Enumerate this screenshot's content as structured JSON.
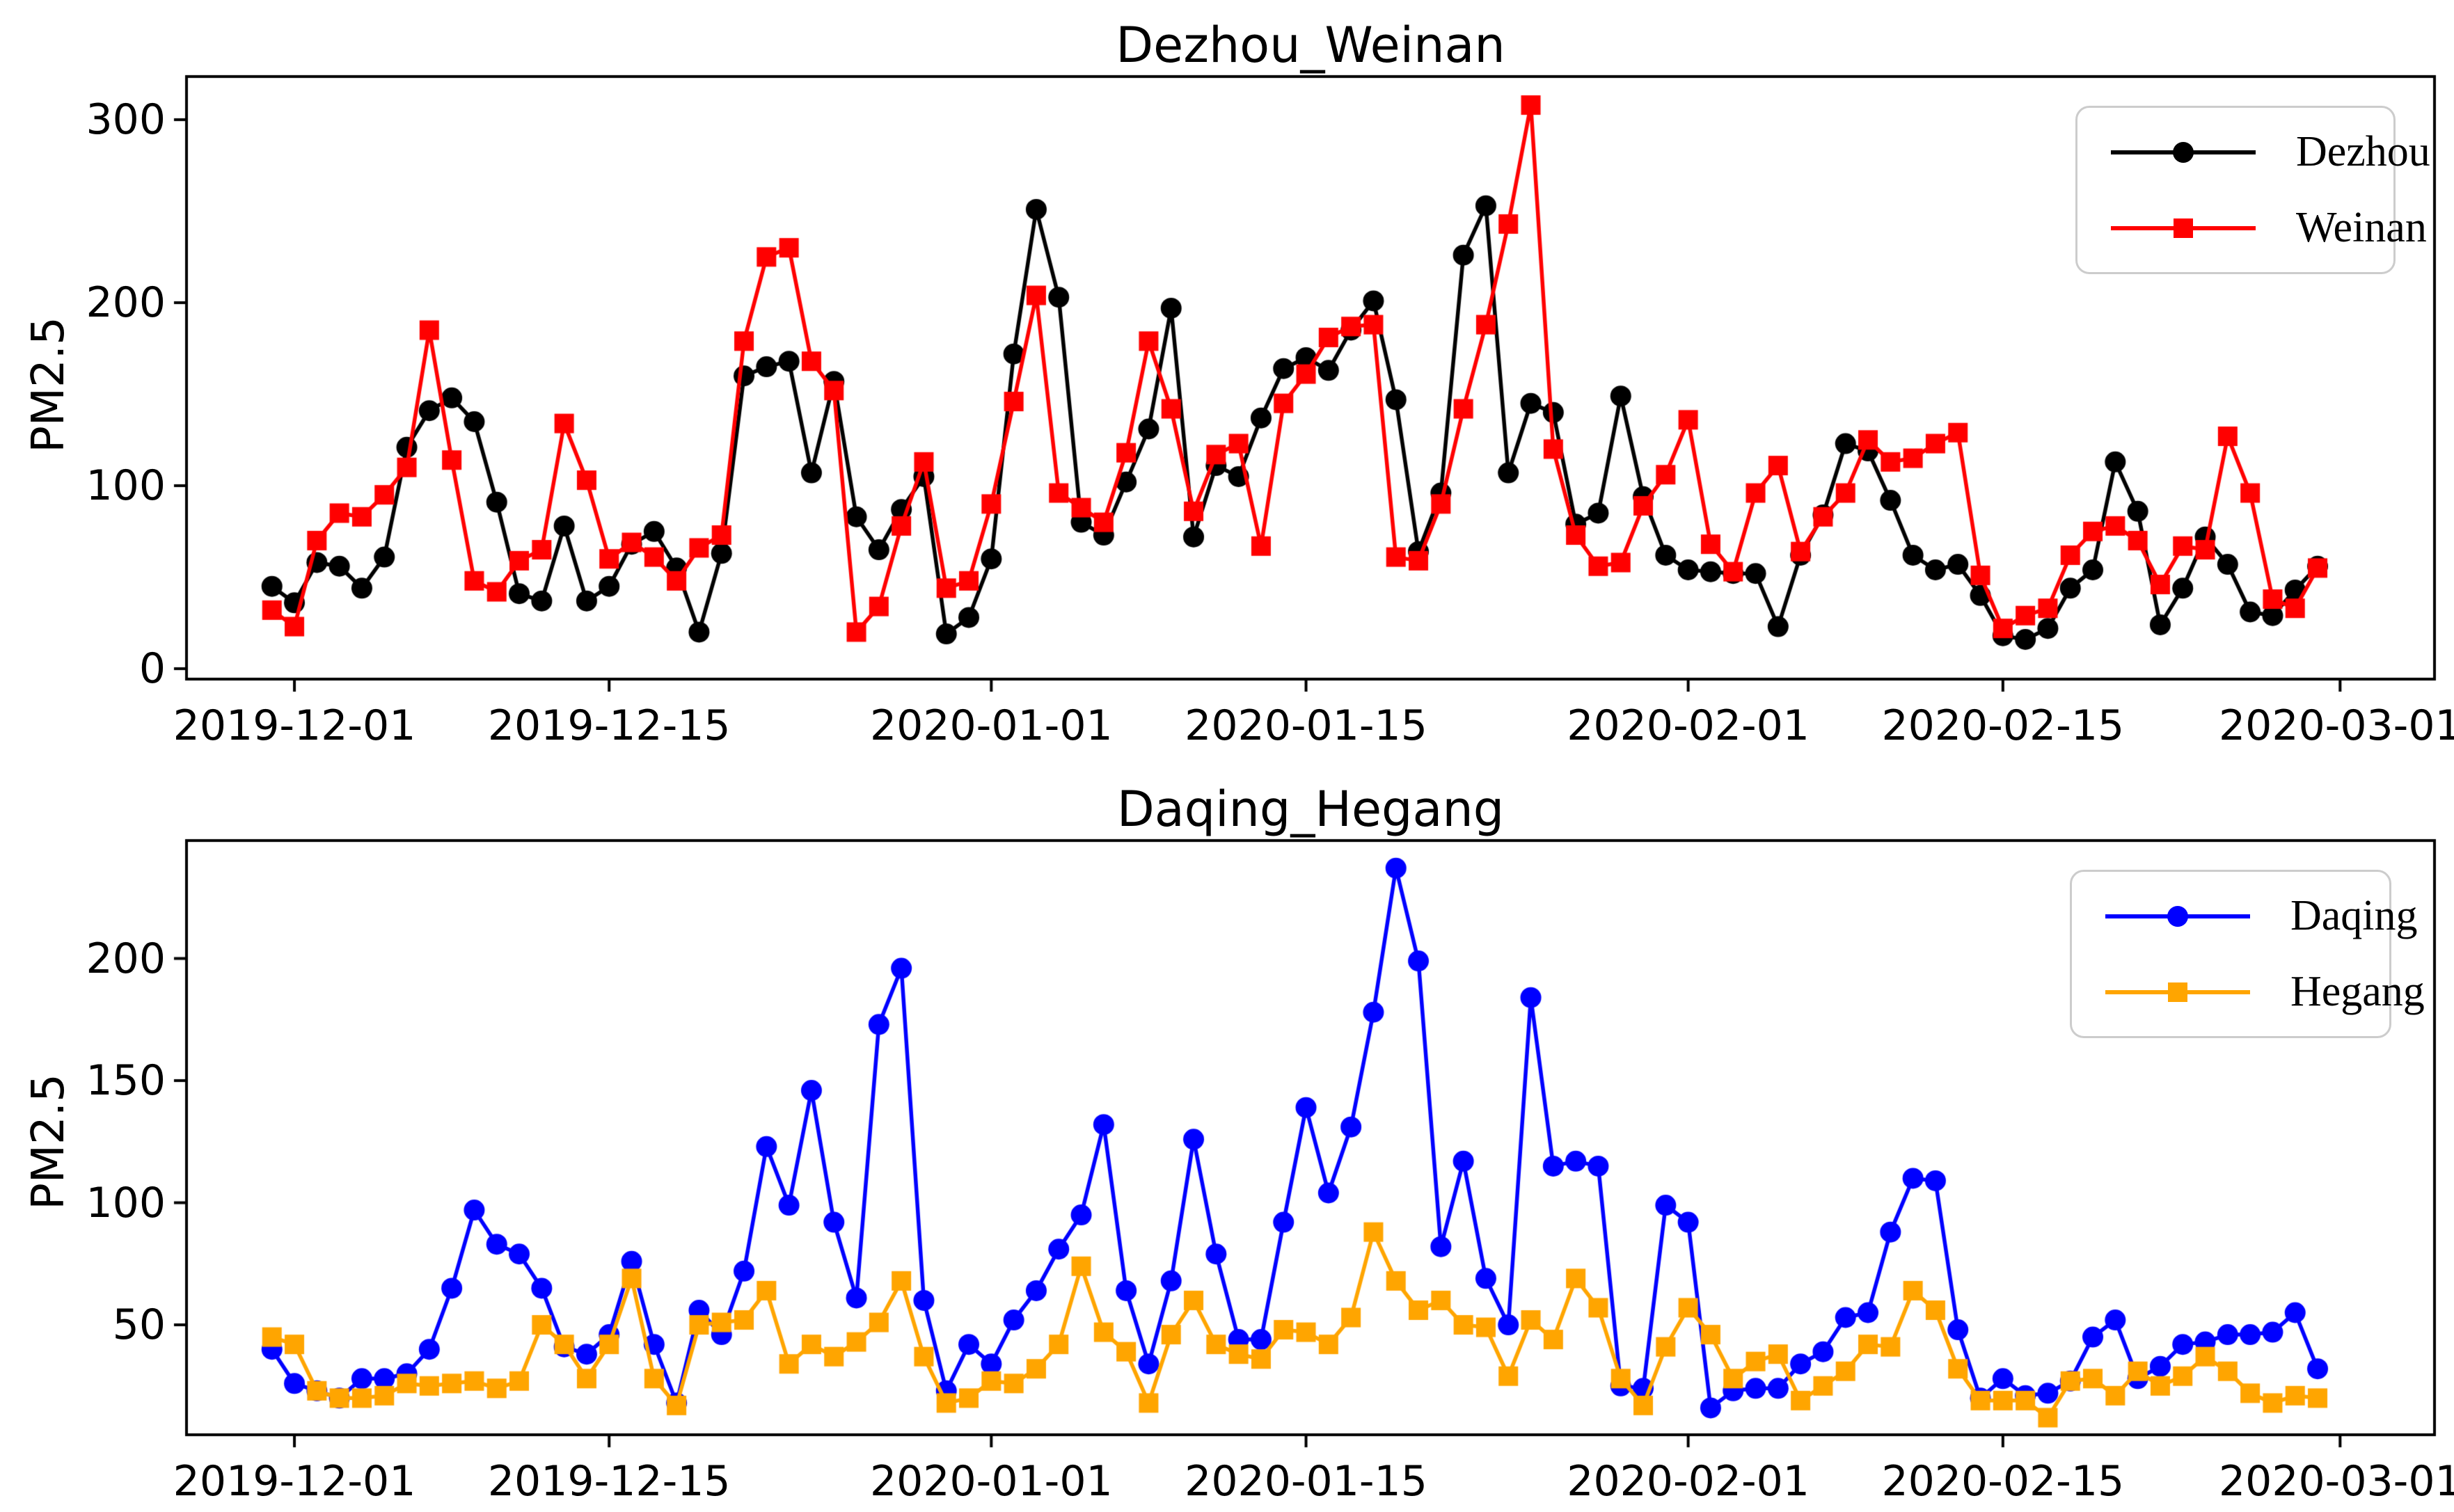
{
  "figure": {
    "background": "#ffffff"
  },
  "chart_data": [
    {
      "type": "line",
      "title": "Dezhou_Weinan",
      "ylabel": "PM2.5",
      "x_start_date": "2019-11-30",
      "x_frequency": "daily",
      "grid": false,
      "legend_position": "upper right",
      "xlim_days": [
        -3.8,
        96.2
      ],
      "ylim": [
        -5.7,
        323.6
      ],
      "yticks": [
        0,
        100,
        200,
        300
      ],
      "xticks": [
        {
          "day": 1,
          "label": "2019-12-01"
        },
        {
          "day": 15,
          "label": "2019-12-15"
        },
        {
          "day": 32,
          "label": "2020-01-01"
        },
        {
          "day": 46,
          "label": "2020-01-15"
        },
        {
          "day": 63,
          "label": "2020-02-01"
        },
        {
          "day": 77,
          "label": "2020-02-15"
        },
        {
          "day": 92,
          "label": "2020-03-01"
        }
      ],
      "series": [
        {
          "name": "Dezhou",
          "color": "#000000",
          "marker": "circle",
          "values": [
            45,
            36,
            58,
            56,
            44,
            61,
            121,
            141,
            148,
            135,
            91,
            41,
            37,
            78,
            37,
            45,
            68,
            75,
            55,
            20,
            63,
            160,
            165,
            168,
            107,
            157,
            83,
            65,
            87,
            105,
            19,
            28,
            60,
            172,
            251,
            203,
            80,
            73,
            102,
            131,
            197,
            72,
            111,
            105,
            137,
            164,
            170,
            163,
            185,
            201,
            147,
            64,
            96,
            226,
            253,
            107,
            145,
            140,
            79,
            85,
            149,
            94,
            62,
            54,
            53,
            52,
            52,
            23,
            62,
            84,
            123,
            119,
            92,
            62,
            54,
            57,
            40,
            18,
            16,
            22,
            44,
            54,
            113,
            86,
            24,
            44,
            72,
            57,
            31,
            29,
            43,
            56
          ]
        },
        {
          "name": "Weinan",
          "color": "#ff0000",
          "marker": "square",
          "values": [
            32,
            23,
            70,
            85,
            83,
            95,
            110,
            185,
            114,
            48,
            42,
            59,
            65,
            134,
            103,
            60,
            69,
            61,
            48,
            66,
            73,
            179,
            225,
            230,
            168,
            152,
            20,
            34,
            78,
            113,
            44,
            48,
            90,
            146,
            204,
            96,
            88,
            80,
            118,
            179,
            142,
            86,
            117,
            123,
            67,
            145,
            161,
            181,
            187,
            188,
            61,
            59,
            90,
            142,
            188,
            243,
            308,
            120,
            73,
            56,
            58,
            89,
            106,
            136,
            68,
            53,
            96,
            111,
            64,
            83,
            96,
            125,
            113,
            115,
            123,
            129,
            51,
            22,
            29,
            33,
            62,
            75,
            78,
            70,
            46,
            67,
            65,
            127,
            96,
            38,
            33,
            55
          ]
        }
      ]
    },
    {
      "type": "line",
      "title": "Daqing_Hegang",
      "ylabel": "PM2.5",
      "x_start_date": "2019-11-30",
      "x_frequency": "daily",
      "grid": false,
      "legend_position": "upper right",
      "xlim_days": [
        -3.8,
        96.2
      ],
      "ylim": [
        5.0,
        248.3
      ],
      "yticks": [
        50,
        100,
        150,
        200
      ],
      "xticks": [
        {
          "day": 1,
          "label": "2019-12-01"
        },
        {
          "day": 15,
          "label": "2019-12-15"
        },
        {
          "day": 32,
          "label": "2020-01-01"
        },
        {
          "day": 46,
          "label": "2020-01-15"
        },
        {
          "day": 63,
          "label": "2020-02-01"
        },
        {
          "day": 77,
          "label": "2020-02-15"
        },
        {
          "day": 92,
          "label": "2020-03-01"
        }
      ],
      "series": [
        {
          "name": "Daqing",
          "color": "#0000ff",
          "marker": "circle",
          "values": [
            40,
            26,
            23,
            20,
            28,
            28,
            30,
            40,
            65,
            97,
            83,
            79,
            65,
            41,
            38,
            46,
            76,
            42,
            18,
            56,
            46,
            72,
            123,
            99,
            146,
            92,
            61,
            173,
            196,
            60,
            23,
            42,
            34,
            52,
            64,
            81,
            95,
            132,
            64,
            34,
            68,
            126,
            79,
            44,
            44,
            92,
            139,
            104,
            131,
            178,
            237,
            199,
            82,
            117,
            69,
            50,
            184,
            115,
            117,
            115,
            25,
            24,
            99,
            92,
            16,
            23,
            24,
            24,
            34,
            39,
            53,
            55,
            88,
            110,
            109,
            48,
            20,
            28,
            21,
            22,
            27,
            45,
            52,
            28,
            33,
            42,
            43,
            46,
            46,
            47,
            55,
            32
          ]
        },
        {
          "name": "Hegang",
          "color": "#ffa500",
          "marker": "square",
          "values": [
            45,
            42,
            23,
            20,
            20,
            21,
            26,
            25,
            26,
            27,
            24,
            27,
            50,
            42,
            28,
            42,
            69,
            28,
            17,
            50,
            51,
            52,
            64,
            34,
            42,
            37,
            43,
            51,
            68,
            37,
            18,
            20,
            27,
            26,
            32,
            42,
            74,
            47,
            39,
            18,
            46,
            60,
            42,
            38,
            36,
            48,
            47,
            42,
            53,
            88,
            68,
            56,
            60,
            50,
            49,
            29,
            52,
            44,
            69,
            57,
            28,
            17,
            41,
            57,
            46,
            28,
            35,
            38,
            19,
            25,
            31,
            42,
            41,
            64,
            56,
            32,
            19,
            19,
            19,
            12,
            27,
            28,
            21,
            31,
            25,
            29,
            37,
            31,
            22,
            18,
            21,
            20
          ]
        }
      ]
    }
  ]
}
